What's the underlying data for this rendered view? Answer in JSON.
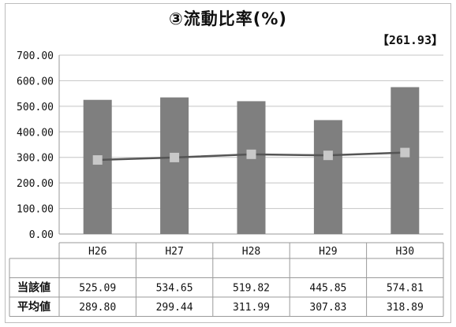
{
  "chart_data": {
    "type": "bar",
    "title": "③流動比率(%)",
    "badge": "【261.93】",
    "categories": [
      "H26",
      "H27",
      "H28",
      "H29",
      "H30"
    ],
    "series": [
      {
        "name": "当該値",
        "kind": "bar",
        "values": [
          525.09,
          534.65,
          519.82,
          445.85,
          574.81
        ],
        "display": [
          "525.09",
          "534.65",
          "519.82",
          "445.85",
          "574.81"
        ],
        "color": "#7f7f7f"
      },
      {
        "name": "平均値",
        "kind": "line",
        "values": [
          289.8,
          299.44,
          311.99,
          307.83,
          318.89
        ],
        "display": [
          "289.80",
          "299.44",
          "311.99",
          "307.83",
          "318.89"
        ],
        "color": "#555555",
        "marker_color": "#c8c8c8"
      }
    ],
    "yticks": [
      "0.00",
      "100.00",
      "200.00",
      "300.00",
      "400.00",
      "500.00",
      "600.00",
      "700.00"
    ],
    "ylim": [
      0,
      700
    ],
    "grid": true
  }
}
